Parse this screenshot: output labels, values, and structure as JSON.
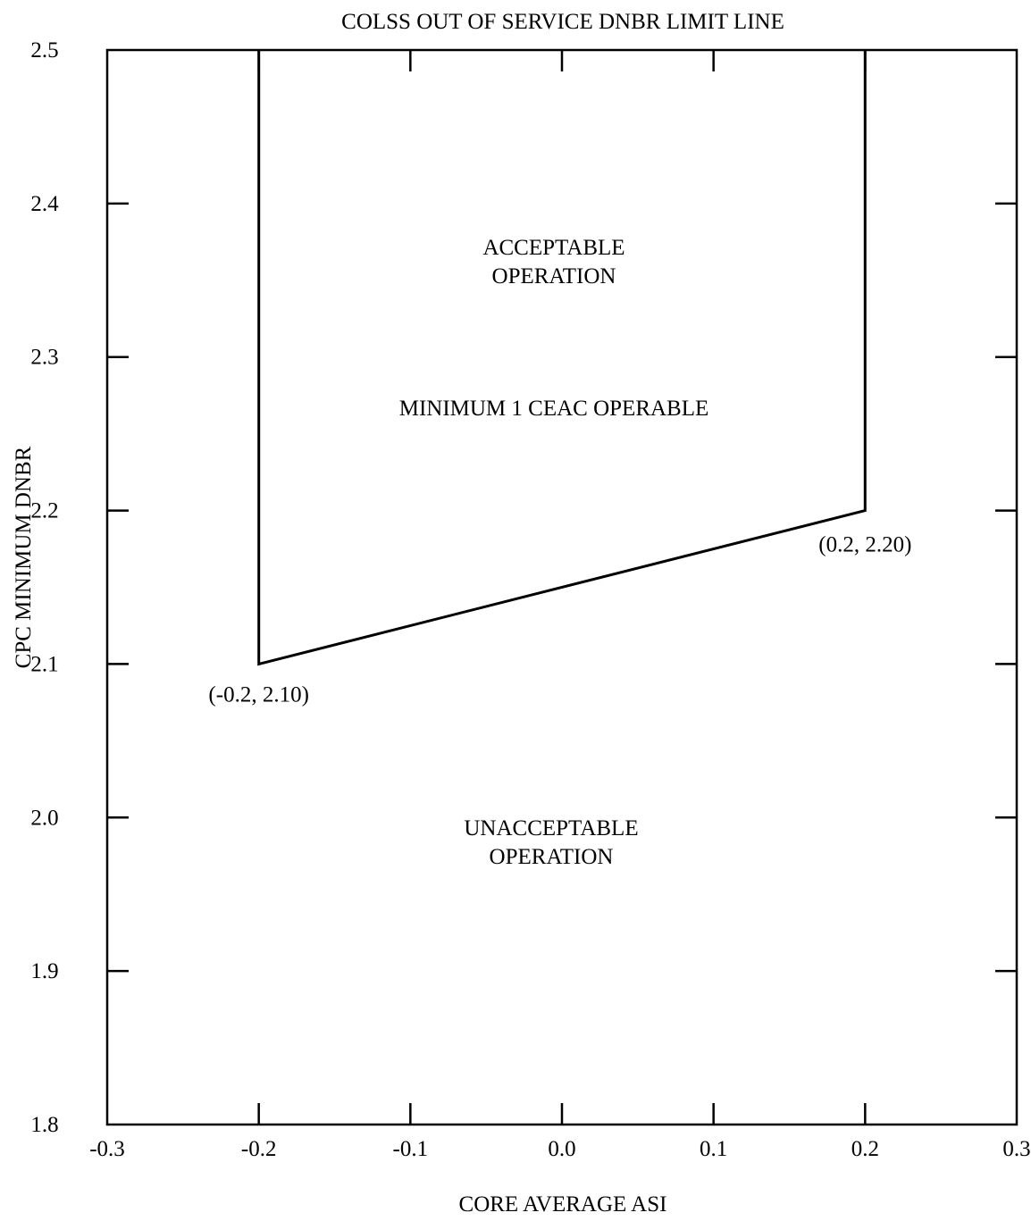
{
  "chart_data": {
    "type": "line",
    "title": "COLSS OUT OF SERVICE DNBR LIMIT LINE",
    "xlabel": "CORE AVERAGE ASI",
    "ylabel": "CPC MINIMUM DNBR",
    "xlim": [
      -0.3,
      0.3
    ],
    "ylim": [
      1.8,
      2.5
    ],
    "grid": false,
    "x_ticks": [
      "-0.3",
      "-0.2",
      "-0.1",
      "0.0",
      "0.1",
      "0.2",
      "0.3"
    ],
    "y_ticks": [
      "1.8",
      "1.9",
      "2.0",
      "2.1",
      "2.2",
      "2.3",
      "2.4",
      "2.5"
    ],
    "series": [
      {
        "points": [
          {
            "x": -0.2,
            "y": 2.5
          },
          {
            "x": -0.2,
            "y": 2.1
          },
          {
            "x": 0.2,
            "y": 2.2
          },
          {
            "x": 0.2,
            "y": 2.5
          }
        ]
      }
    ],
    "point_labels": [
      {
        "text": "(-0.2, 2.10)",
        "x": -0.2,
        "y": 2.1
      },
      {
        "text": "(0.2, 2.20)",
        "x": 0.2,
        "y": 2.2
      }
    ],
    "annotations": [
      {
        "lines": [
          "ACCEPTABLE",
          "OPERATION"
        ]
      },
      {
        "lines": [
          "MINIMUM 1 CEAC OPERABLE"
        ]
      },
      {
        "lines": [
          "UNACCEPTABLE",
          "OPERATION"
        ]
      }
    ]
  }
}
